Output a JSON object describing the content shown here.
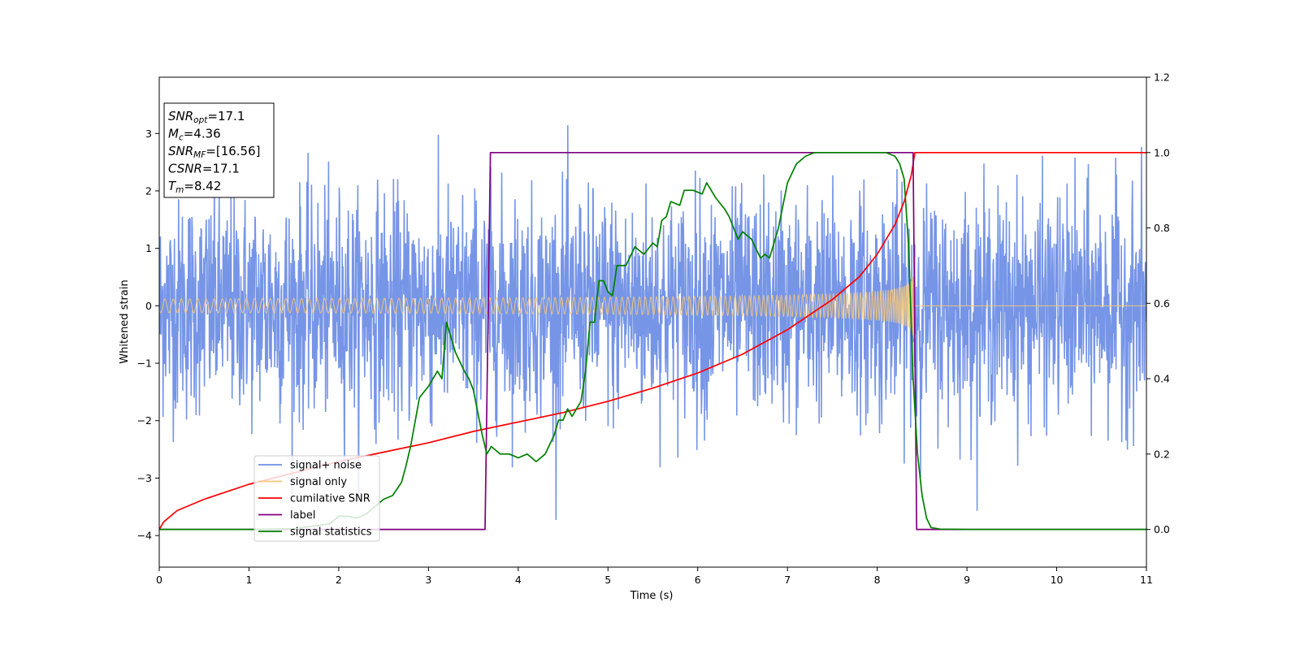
{
  "chart_data": {
    "type": "line",
    "xlabel": "Time (s)",
    "ylabel": "Whitened strain",
    "xlim": [
      0,
      11
    ],
    "ylim": [
      -4.55,
      3.98
    ],
    "y2lim": [
      -0.1,
      1.2
    ],
    "xticks": [
      0,
      1,
      2,
      3,
      4,
      5,
      6,
      7,
      8,
      9,
      10,
      11
    ],
    "yticks": [
      -4,
      -3,
      -2,
      -1,
      0,
      1,
      2,
      3
    ],
    "y2ticks": [
      0.0,
      0.2,
      0.4,
      0.6,
      0.8,
      1.0,
      1.2
    ],
    "legend_position": "lower-left",
    "colors": {
      "noise": "#6f8fe6",
      "signal": "#f5c77a",
      "cumulative": "#ff0000",
      "label": "#800080",
      "statistics": "#008000"
    },
    "info_box": [
      {
        "base": "SNR",
        "sub": "opt",
        "value": "=17.1"
      },
      {
        "base": "M",
        "sub": "c",
        "value": "=4.36"
      },
      {
        "base": "SNR",
        "sub": "MF",
        "value": "=[16.56]"
      },
      {
        "base": "CSNR",
        "sub": "",
        "value": "=17.1"
      },
      {
        "base": "T",
        "sub": "m",
        "value": "=8.42"
      }
    ],
    "noise": {
      "name": "signal+ noise",
      "sigma": 0.95,
      "axis": "left"
    },
    "signal": {
      "name": "signal only",
      "t_end": 8.42,
      "amp_start": 0.12,
      "amp_end": 1.0,
      "axis": "left"
    },
    "series": [
      {
        "name": "cumilative SNR",
        "axis": "right",
        "x": [
          0.0,
          0.05,
          0.2,
          0.5,
          1.0,
          1.5,
          2.0,
          2.5,
          3.0,
          3.5,
          4.0,
          4.5,
          5.0,
          5.5,
          6.0,
          6.5,
          7.0,
          7.5,
          7.8,
          8.0,
          8.2,
          8.3,
          8.38,
          8.42,
          8.5,
          11.0
        ],
        "y": [
          0.0,
          0.02,
          0.05,
          0.08,
          0.12,
          0.15,
          0.18,
          0.205,
          0.23,
          0.26,
          0.285,
          0.31,
          0.34,
          0.375,
          0.415,
          0.465,
          0.53,
          0.61,
          0.67,
          0.73,
          0.81,
          0.87,
          0.94,
          1.0,
          1.0,
          1.0
        ]
      },
      {
        "name": "label",
        "axis": "right",
        "x": [
          0.0,
          3.63,
          3.69,
          8.4,
          8.44,
          11.0
        ],
        "y": [
          0.0,
          0.0,
          1.0,
          1.0,
          0.0,
          0.0
        ]
      },
      {
        "name": "signal statistics",
        "axis": "right",
        "x": [
          0.0,
          1.0,
          1.5,
          1.9,
          2.0,
          2.1,
          2.2,
          2.3,
          2.4,
          2.5,
          2.6,
          2.7,
          2.75,
          2.8,
          2.9,
          3.0,
          3.05,
          3.1,
          3.15,
          3.2,
          3.3,
          3.4,
          3.45,
          3.5,
          3.6,
          3.65,
          3.7,
          3.8,
          3.9,
          4.0,
          4.1,
          4.2,
          4.3,
          4.4,
          4.45,
          4.5,
          4.55,
          4.6,
          4.7,
          4.75,
          4.8,
          4.85,
          4.9,
          4.95,
          5.0,
          5.05,
          5.1,
          5.2,
          5.3,
          5.35,
          5.4,
          5.5,
          5.55,
          5.6,
          5.65,
          5.7,
          5.8,
          5.85,
          5.95,
          6.05,
          6.1,
          6.2,
          6.3,
          6.35,
          6.45,
          6.5,
          6.6,
          6.7,
          6.75,
          6.8,
          6.9,
          7.0,
          7.1,
          7.2,
          7.3,
          7.5,
          7.8,
          8.0,
          8.1,
          8.15,
          8.2,
          8.25,
          8.3,
          8.35,
          8.4,
          8.45,
          8.5,
          8.55,
          8.6,
          8.7,
          9.0,
          11.0
        ],
        "y": [
          0.0,
          0.0,
          0.002,
          0.015,
          0.035,
          0.035,
          0.03,
          0.04,
          0.06,
          0.08,
          0.09,
          0.125,
          0.17,
          0.22,
          0.35,
          0.38,
          0.4,
          0.42,
          0.4,
          0.55,
          0.47,
          0.42,
          0.4,
          0.37,
          0.25,
          0.2,
          0.22,
          0.2,
          0.2,
          0.19,
          0.2,
          0.18,
          0.2,
          0.25,
          0.29,
          0.29,
          0.32,
          0.3,
          0.34,
          0.42,
          0.55,
          0.55,
          0.66,
          0.66,
          0.63,
          0.62,
          0.7,
          0.7,
          0.75,
          0.74,
          0.73,
          0.76,
          0.75,
          0.82,
          0.83,
          0.87,
          0.86,
          0.9,
          0.9,
          0.89,
          0.92,
          0.88,
          0.85,
          0.83,
          0.77,
          0.79,
          0.77,
          0.72,
          0.73,
          0.72,
          0.8,
          0.92,
          0.97,
          0.99,
          1.0,
          1.0,
          1.0,
          1.0,
          1.0,
          0.995,
          0.99,
          0.97,
          0.93,
          0.75,
          0.4,
          0.2,
          0.09,
          0.03,
          0.005,
          0.001,
          0.0,
          0.0
        ]
      }
    ]
  }
}
